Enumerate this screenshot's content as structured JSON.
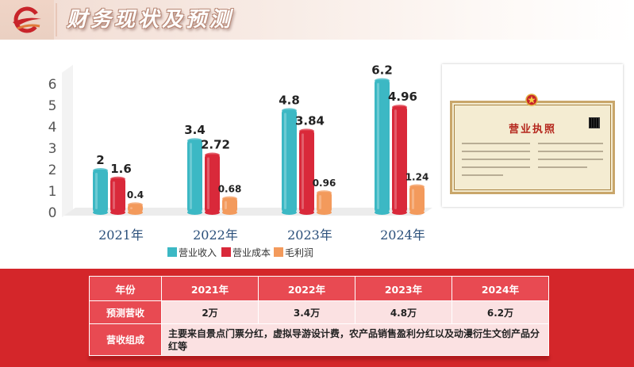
{
  "header": {
    "title": "财务现状及预测",
    "logo_icon": "company-swoosh-logo"
  },
  "chart_data": {
    "type": "bar",
    "categories": [
      "2021年",
      "2022年",
      "2023年",
      "2024年"
    ],
    "series": [
      {
        "name": "营业收入",
        "values": [
          2,
          3.4,
          4.8,
          6.2
        ],
        "labels": [
          "2",
          "3.4",
          "4.8",
          "6.2"
        ],
        "color": "#3cb8c4"
      },
      {
        "name": "营业成本",
        "values": [
          1.6,
          2.72,
          3.84,
          4.96
        ],
        "labels": [
          "1.6",
          "2.72",
          "3.84",
          "4.96"
        ],
        "color": "#d9293a"
      },
      {
        "name": "毛利润",
        "values": [
          0.4,
          0.68,
          0.96,
          1.24
        ],
        "labels": [
          "0.4",
          "0.68",
          "0.96",
          "1.24"
        ],
        "color": "#f39a5c"
      }
    ],
    "yticks": [
      "0",
      "1",
      "2",
      "3",
      "4",
      "5",
      "6"
    ],
    "ylim": [
      0,
      6.6
    ],
    "legend_position": "bottom",
    "grid": false
  },
  "license": {
    "title": "营业执照",
    "emblem_icon": "national-emblem-icon"
  },
  "table": {
    "header": [
      "年份",
      "2021年",
      "2022年",
      "2023年",
      "2024年"
    ],
    "forecast": {
      "label": "预测营收",
      "values": [
        "2万",
        "3.4万",
        "4.8万",
        "6.2万"
      ]
    },
    "composition": {
      "label": "营收组成",
      "text": "主要来自景点门票分红，虚拟导游设计费，农产品销售盈利分红以及动漫衍生文创产品分红等"
    }
  },
  "colors": {
    "accent": "#d4262a",
    "header_cell": "#e84a52",
    "body_cell": "#fbe1e2"
  }
}
